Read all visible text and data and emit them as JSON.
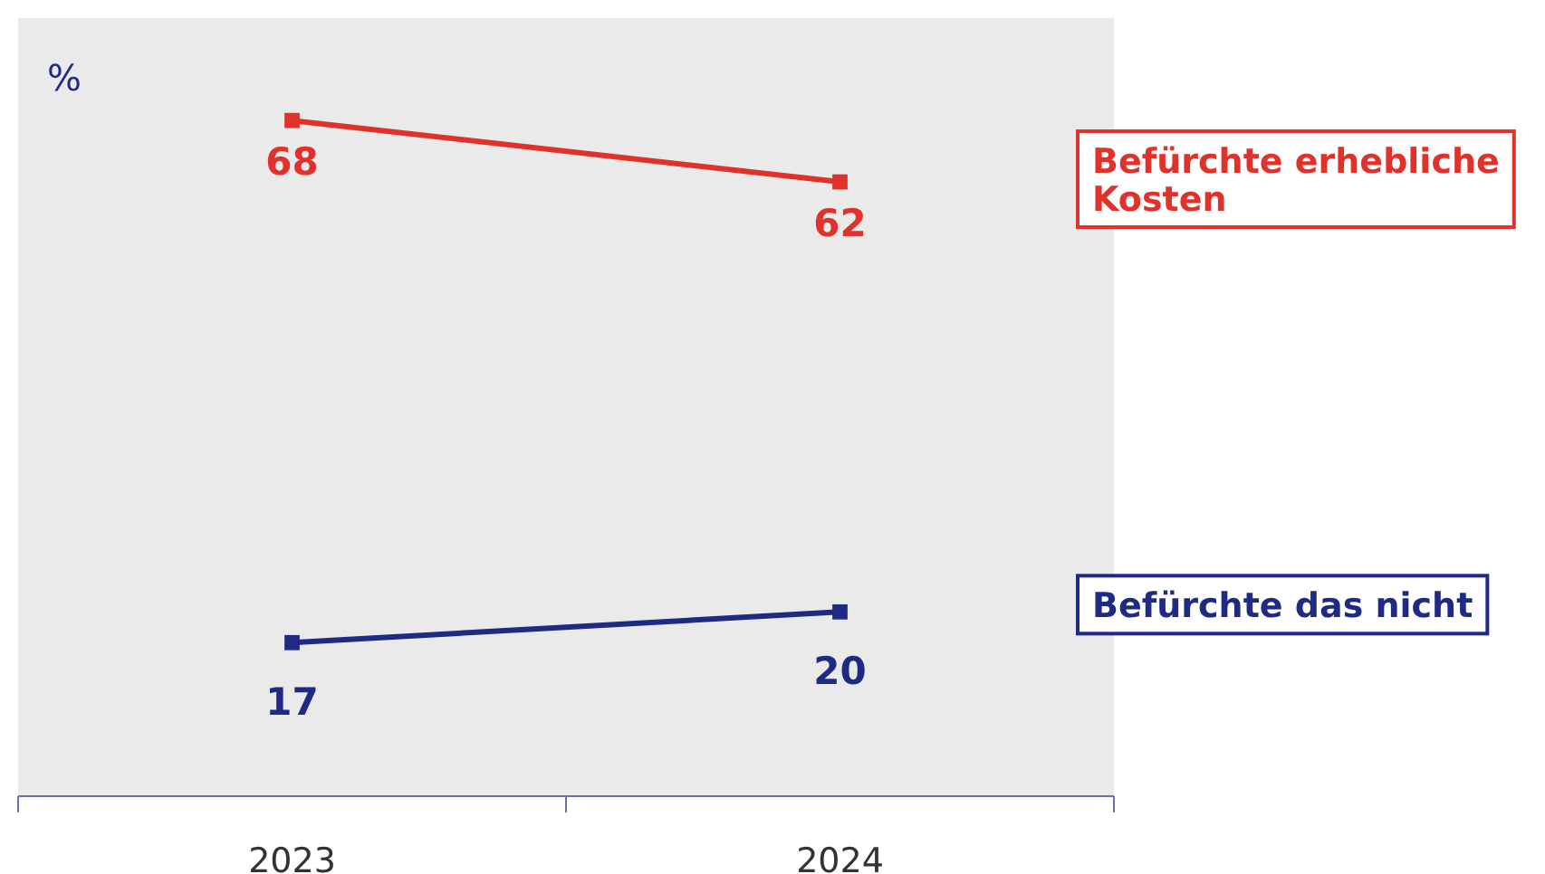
{
  "chart_data": {
    "type": "line",
    "ylabel": "%",
    "categories": [
      "2023",
      "2024"
    ],
    "ylim": [
      2,
      78
    ],
    "data_labels": true,
    "marker": "square",
    "legend": "right",
    "series": [
      {
        "name": "Befürchte erhebliche Kosten",
        "color": "#e0322a",
        "values": [
          68,
          62
        ]
      },
      {
        "name": "Befürchte das nicht",
        "color": "#1f2a85",
        "values": [
          17,
          20
        ]
      }
    ]
  }
}
